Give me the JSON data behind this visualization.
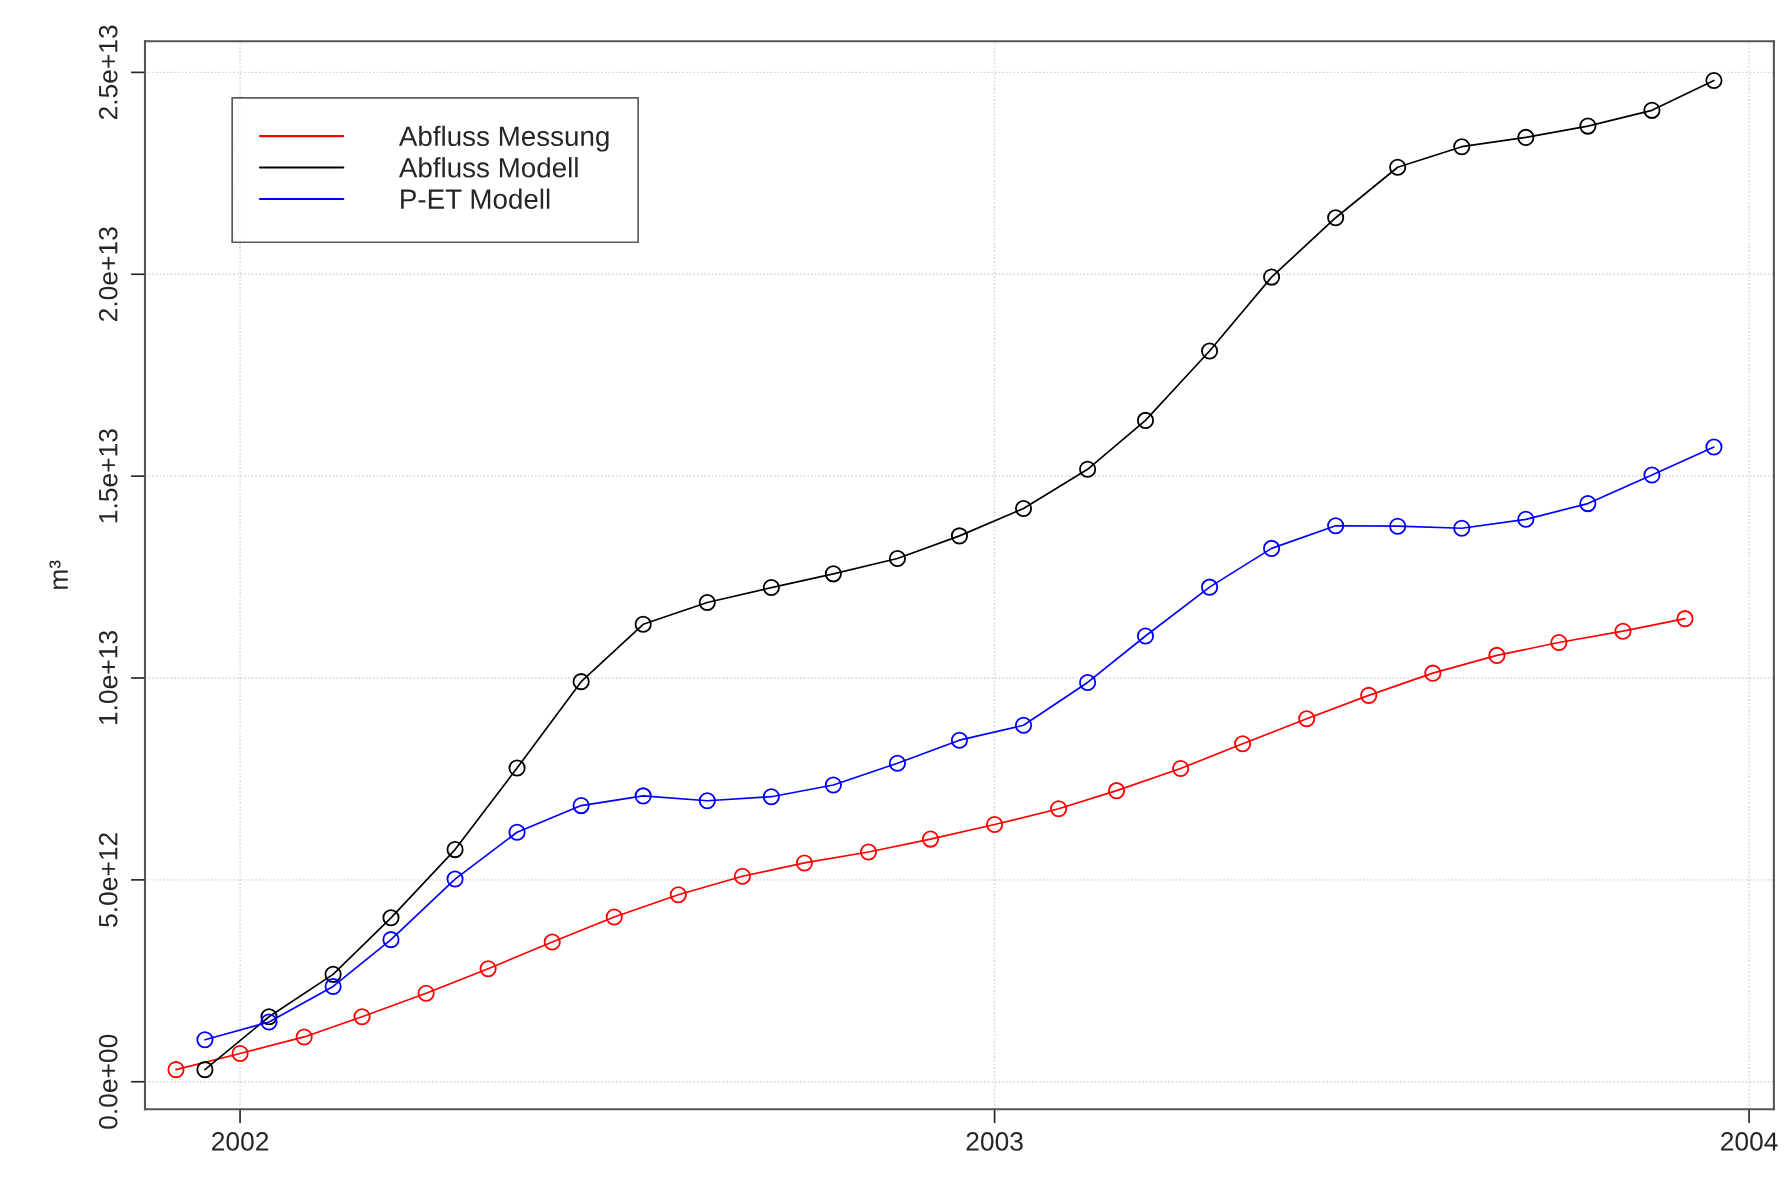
{
  "chart_data": {
    "type": "line",
    "ylabel": "m³",
    "series": [
      {
        "name": "Abfluss Messung",
        "color": "#ff0000",
        "x": [
          "2001-12-01",
          "2002-01-01",
          "2002-02-01",
          "2002-03-01",
          "2002-04-01",
          "2002-05-01",
          "2002-06-01",
          "2002-07-01",
          "2002-08-01",
          "2002-09-01",
          "2002-10-01",
          "2002-11-01",
          "2002-12-01",
          "2003-01-01",
          "2003-02-01",
          "2003-03-01",
          "2003-04-01",
          "2003-05-01",
          "2003-06-01",
          "2003-07-01",
          "2003-08-01",
          "2003-09-01",
          "2003-10-01",
          "2003-11-01",
          "2003-12-01"
        ],
        "values": [
          300000000000.0,
          700000000000.0,
          1110000000000.0,
          1610000000000.0,
          2190000000000.0,
          2800000000000.0,
          3460000000000.0,
          4080000000000.0,
          4630000000000.0,
          5090000000000.0,
          5420000000000.0,
          5690000000000.0,
          6010000000000.0,
          6370000000000.0,
          6760000000000.0,
          7210000000000.0,
          7760000000000.0,
          8370000000000.0,
          8990000000000.0,
          9570000000000.0,
          10120000000000.0,
          10560000000000.0,
          10880000000000.0,
          11160000000000.0,
          11470000000000.0
        ]
      },
      {
        "name": "Abfluss Modell",
        "color": "#000000",
        "x": [
          "2001-12-15",
          "2002-01-15",
          "2002-02-15",
          "2002-03-15",
          "2002-04-15",
          "2002-05-15",
          "2002-06-15",
          "2002-07-15",
          "2002-08-15",
          "2002-09-15",
          "2002-10-15",
          "2002-11-15",
          "2002-12-15",
          "2003-01-15",
          "2003-02-15",
          "2003-03-15",
          "2003-04-15",
          "2003-05-15",
          "2003-06-15",
          "2003-07-15",
          "2003-08-15",
          "2003-09-15",
          "2003-10-15",
          "2003-11-15",
          "2003-12-15"
        ],
        "values": [
          300000000000.0,
          1610000000000.0,
          2660000000000.0,
          4060000000000.0,
          5750000000000.0,
          7770000000000.0,
          9910000000000.0,
          11330000000000.0,
          11870000000000.0,
          12240000000000.0,
          12580000000000.0,
          12960000000000.0,
          13520000000000.0,
          14200000000000.0,
          15170000000000.0,
          16380000000000.0,
          18100000000000.0,
          19930000000000.0,
          21400000000000.0,
          22650000000000.0,
          23160000000000.0,
          23390000000000.0,
          23670000000000.0,
          24060000000000.0,
          24800000000000.0
        ]
      },
      {
        "name": "P-ET Modell",
        "color": "#0000ff",
        "x": [
          "2001-12-15",
          "2002-01-15",
          "2002-02-15",
          "2002-03-15",
          "2002-04-15",
          "2002-05-15",
          "2002-06-15",
          "2002-07-15",
          "2002-08-15",
          "2002-09-15",
          "2002-10-15",
          "2002-11-15",
          "2002-12-15",
          "2003-01-15",
          "2003-02-15",
          "2003-03-15",
          "2003-04-15",
          "2003-05-15",
          "2003-06-15",
          "2003-07-15",
          "2003-08-15",
          "2003-09-15",
          "2003-10-15",
          "2003-11-15",
          "2003-12-15"
        ],
        "values": [
          1040000000000.0,
          1480000000000.0,
          2360000000000.0,
          3520000000000.0,
          5020000000000.0,
          6180000000000.0,
          6840000000000.0,
          7080000000000.0,
          6960000000000.0,
          7060000000000.0,
          7350000000000.0,
          7890000000000.0,
          8460000000000.0,
          8830000000000.0,
          9890000000000.0,
          11040000000000.0,
          12250000000000.0,
          13210000000000.0,
          13770000000000.0,
          13760000000000.0,
          13710000000000.0,
          13930000000000.0,
          14320000000000.0,
          15030000000000.0,
          15720000000000.0
        ]
      }
    ],
    "xlim": [
      "2001-11-16",
      "2004-01-13"
    ],
    "xticks": [
      {
        "value": "2002-01-01",
        "label": "2002"
      },
      {
        "value": "2003-01-01",
        "label": "2003"
      },
      {
        "value": "2004-01-01",
        "label": "2004"
      }
    ],
    "ylim": [
      -680000000000.0,
      25770000000000.0
    ],
    "yticks": [
      {
        "value": 0,
        "label": "0.0e+00"
      },
      {
        "value": 5000000000000.0,
        "label": "5.0e+12"
      },
      {
        "value": 10000000000000.0,
        "label": "1.0e+13"
      },
      {
        "value": 15000000000000.0,
        "label": "1.5e+13"
      },
      {
        "value": 20000000000000.0,
        "label": "2.0e+13"
      },
      {
        "value": 25000000000000.0,
        "label": "2.5e+13"
      }
    ],
    "grid": true,
    "legend": "top left",
    "marker": "circle",
    "line_style": "solid"
  }
}
